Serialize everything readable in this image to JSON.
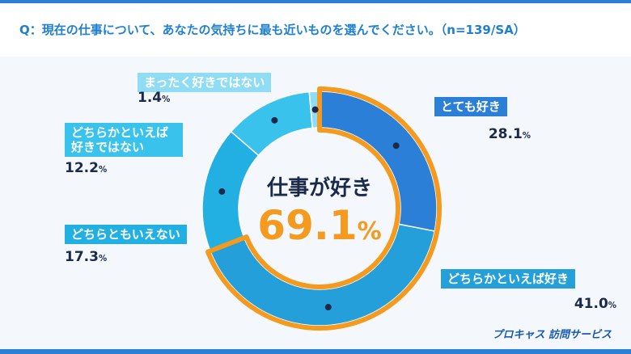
{
  "chart_data": {
    "type": "donut",
    "title": "Q：現在の仕事について、あなたの気持ちに最も近いものを選んでください。（n=139/SA）",
    "categories": [
      "とても好き",
      "どちらかといえば好き",
      "どちらともいえない",
      "どちらかといえば好きではない",
      "まったく好きではない"
    ],
    "values": [
      28.1,
      41.0,
      17.3,
      12.2,
      1.4
    ],
    "value_labels": [
      "28.1%",
      "41.0%",
      "17.3%",
      "12.2%",
      "1.4%"
    ],
    "colors": [
      "#2c7fd6",
      "#259fd9",
      "#22b0e2",
      "#38c2ec",
      "#8fdcf4"
    ],
    "highlight": {
      "label": "仕事が好き",
      "value": 69.1,
      "value_label": "69.1%",
      "color": "#f39a1f"
    },
    "brand": "プロキャス 訪問サービス"
  }
}
